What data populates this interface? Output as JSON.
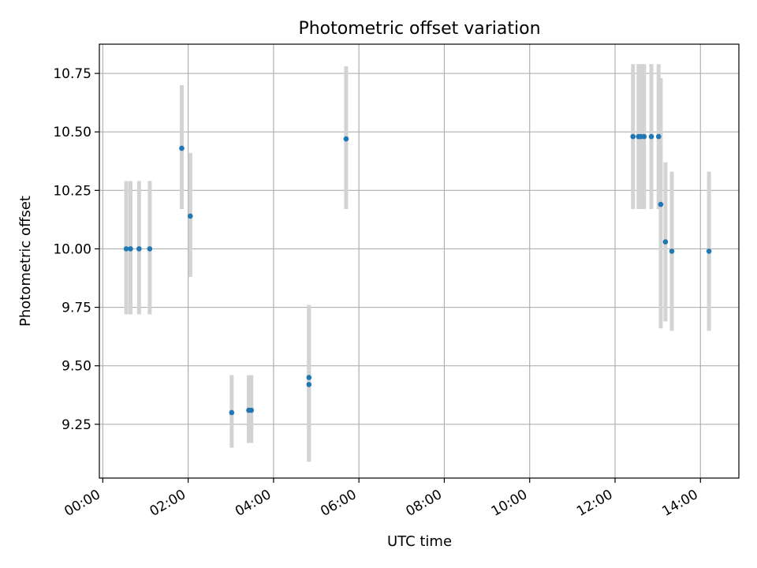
{
  "chart_data": {
    "type": "scatter",
    "title": "Photometric offset variation",
    "xlabel": "UTC time",
    "ylabel": "Photometric offset",
    "x_unit": "hours",
    "xlim": [
      -0.08,
      14.9
    ],
    "ylim": [
      9.02,
      10.875
    ],
    "x_ticks": [
      {
        "value": 0,
        "label": "00:00"
      },
      {
        "value": 2,
        "label": "02:00"
      },
      {
        "value": 4,
        "label": "04:00"
      },
      {
        "value": 6,
        "label": "06:00"
      },
      {
        "value": 8,
        "label": "08:00"
      },
      {
        "value": 10,
        "label": "10:00"
      },
      {
        "value": 12,
        "label": "12:00"
      },
      {
        "value": 14,
        "label": "14:00"
      }
    ],
    "y_ticks": [
      {
        "value": 9.25,
        "label": "9.25"
      },
      {
        "value": 9.5,
        "label": "9.50"
      },
      {
        "value": 9.75,
        "label": "9.75"
      },
      {
        "value": 10.0,
        "label": "10.00"
      },
      {
        "value": 10.25,
        "label": "10.25"
      },
      {
        "value": 10.5,
        "label": "10.50"
      },
      {
        "value": 10.75,
        "label": "10.75"
      }
    ],
    "grid": true,
    "point_color": "#1f77b4",
    "errorbar_color": "#d3d3d3",
    "points": [
      {
        "x": 0.55,
        "y": 10.0,
        "err_low": 9.72,
        "err_high": 10.29
      },
      {
        "x": 0.65,
        "y": 10.0,
        "err_low": 9.72,
        "err_high": 10.29
      },
      {
        "x": 0.85,
        "y": 10.0,
        "err_low": 9.72,
        "err_high": 10.29
      },
      {
        "x": 1.1,
        "y": 10.0,
        "err_low": 9.72,
        "err_high": 10.29
      },
      {
        "x": 1.85,
        "y": 10.43,
        "err_low": 10.17,
        "err_high": 10.7
      },
      {
        "x": 2.05,
        "y": 10.14,
        "err_low": 9.88,
        "err_high": 10.41
      },
      {
        "x": 3.02,
        "y": 9.3,
        "err_low": 9.15,
        "err_high": 9.46
      },
      {
        "x": 3.42,
        "y": 9.31,
        "err_low": 9.17,
        "err_high": 9.46
      },
      {
        "x": 3.48,
        "y": 9.31,
        "err_low": 9.17,
        "err_high": 9.46
      },
      {
        "x": 4.83,
        "y": 9.45,
        "err_low": 9.09,
        "err_high": 9.76
      },
      {
        "x": 4.83,
        "y": 9.42,
        "err_low": 9.09,
        "err_high": 9.76
      },
      {
        "x": 5.7,
        "y": 10.47,
        "err_low": 10.17,
        "err_high": 10.78
      },
      {
        "x": 12.42,
        "y": 10.48,
        "err_low": 10.17,
        "err_high": 10.79
      },
      {
        "x": 12.55,
        "y": 10.48,
        "err_low": 10.17,
        "err_high": 10.79
      },
      {
        "x": 12.6,
        "y": 10.48,
        "err_low": 10.17,
        "err_high": 10.79
      },
      {
        "x": 12.68,
        "y": 10.48,
        "err_low": 10.17,
        "err_high": 10.79
      },
      {
        "x": 12.85,
        "y": 10.48,
        "err_low": 10.17,
        "err_high": 10.79
      },
      {
        "x": 13.02,
        "y": 10.48,
        "err_low": 10.17,
        "err_high": 10.79
      },
      {
        "x": 13.07,
        "y": 10.19,
        "err_low": 9.66,
        "err_high": 10.73
      },
      {
        "x": 13.18,
        "y": 10.03,
        "err_low": 9.69,
        "err_high": 10.37
      },
      {
        "x": 13.33,
        "y": 9.99,
        "err_low": 9.65,
        "err_high": 10.33
      },
      {
        "x": 14.2,
        "y": 9.99,
        "err_low": 9.65,
        "err_high": 10.33
      }
    ]
  }
}
